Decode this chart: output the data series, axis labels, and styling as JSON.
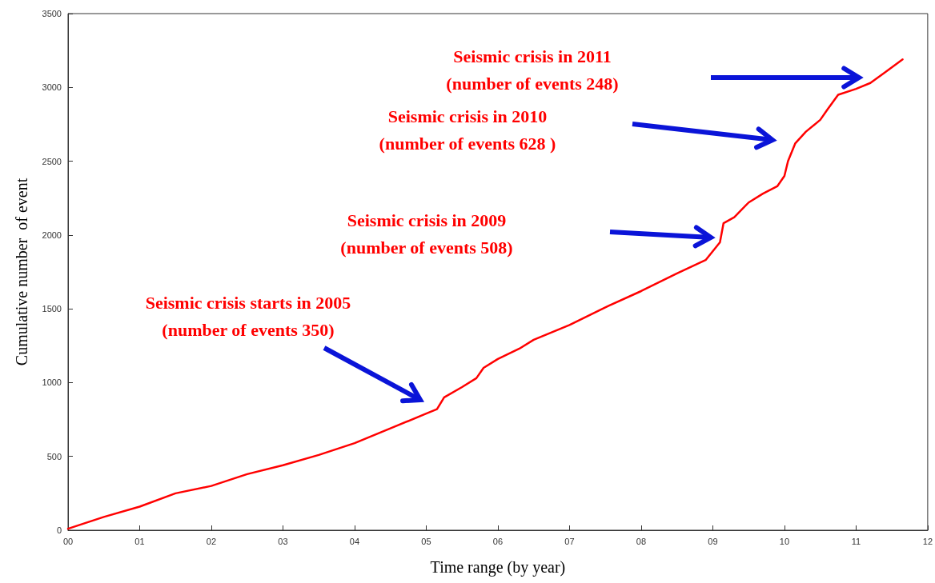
{
  "chart_data": {
    "type": "line",
    "xlabel": "Time range (by year)",
    "ylabel": "Cumulative number  of event",
    "x": [
      0,
      0.5,
      1,
      1.5,
      2,
      2.5,
      3,
      3.5,
      4,
      4.5,
      5,
      5.15,
      5.25,
      5.5,
      5.7,
      5.8,
      6,
      6.3,
      6.5,
      7,
      7.5,
      8,
      8.5,
      8.9,
      9.1,
      9.15,
      9.3,
      9.5,
      9.7,
      9.9,
      10,
      10.05,
      10.15,
      10.3,
      10.5,
      10.6,
      10.75,
      11,
      11.2,
      11.4,
      11.65
    ],
    "series": [
      {
        "color": "#ff0000",
        "values": [
          10,
          90,
          160,
          250,
          300,
          380,
          440,
          510,
          590,
          690,
          790,
          820,
          900,
          970,
          1030,
          1100,
          1160,
          1230,
          1290,
          1390,
          1510,
          1620,
          1740,
          1830,
          1950,
          2080,
          2120,
          2220,
          2280,
          2330,
          2400,
          2500,
          2620,
          2700,
          2780,
          2850,
          2950,
          2990,
          3030,
          3100,
          3190
        ]
      }
    ],
    "xlim": [
      0,
      12
    ],
    "ylim": [
      0,
      3500
    ],
    "xticks": [
      {
        "value": 0,
        "label": "00"
      },
      {
        "value": 1,
        "label": "01"
      },
      {
        "value": 2,
        "label": "02"
      },
      {
        "value": 3,
        "label": "03"
      },
      {
        "value": 4,
        "label": "04"
      },
      {
        "value": 5,
        "label": "05"
      },
      {
        "value": 6,
        "label": "06"
      },
      {
        "value": 7,
        "label": "07"
      },
      {
        "value": 8,
        "label": "08"
      },
      {
        "value": 9,
        "label": "09"
      },
      {
        "value": 10,
        "label": "10"
      },
      {
        "value": 11,
        "label": "11"
      },
      {
        "value": 12,
        "label": "12"
      }
    ],
    "yticks": [
      0,
      500,
      1000,
      1500,
      2000,
      2500,
      3000,
      3500
    ],
    "grid": false,
    "marker": "none",
    "line_style": "solid",
    "annotations": [
      "Seismic crisis starts in 2005\n(number of events 350)",
      "Seismic crisis in 2009\n(number of events 508)",
      "Seismic crisis in 2010\n(number of events 628 )",
      "Seismic crisis in 2011\n(number of events 248)"
    ]
  }
}
